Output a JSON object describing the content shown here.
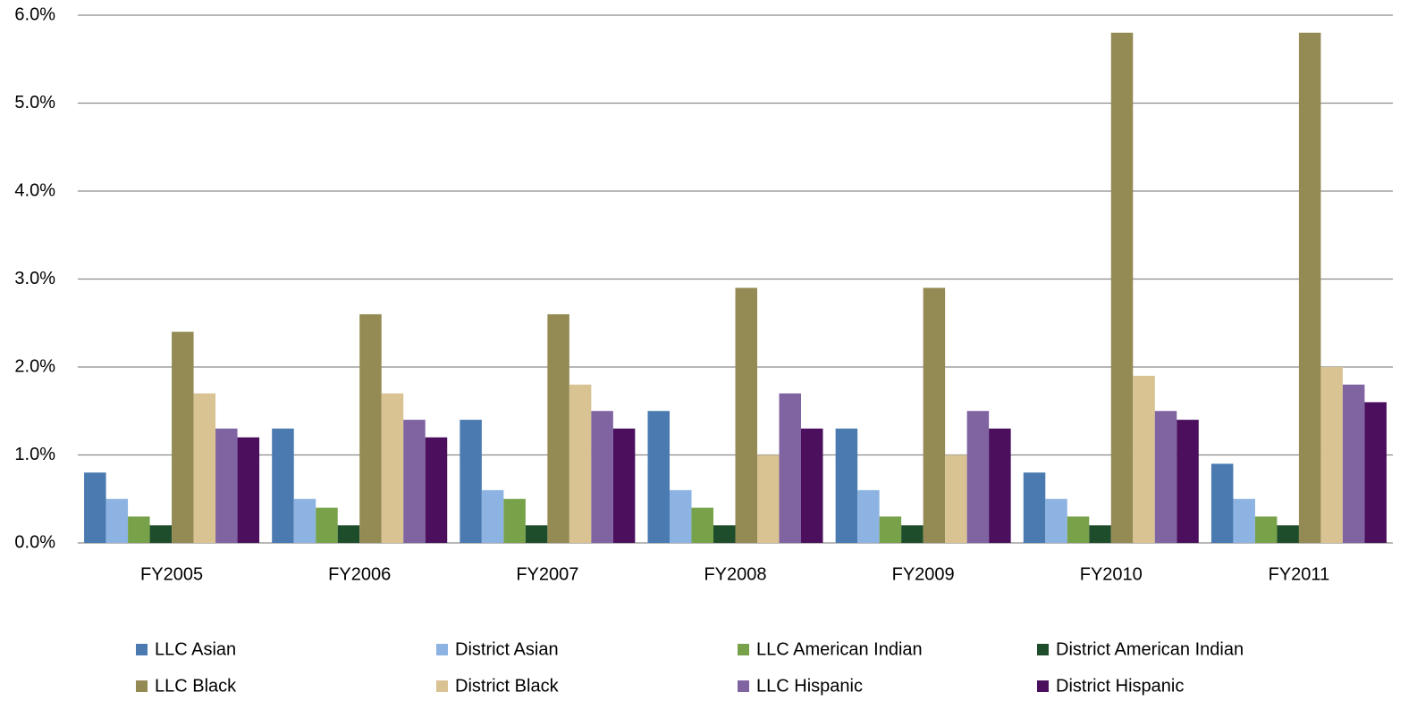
{
  "chart_data": {
    "type": "bar",
    "categories": [
      "FY2005",
      "FY2006",
      "FY2007",
      "FY2008",
      "FY2009",
      "FY2010",
      "FY2011"
    ],
    "series": [
      {
        "name": "LLC Asian",
        "color": "#4a7ab0",
        "values": [
          0.8,
          1.3,
          1.4,
          1.5,
          1.3,
          0.8,
          0.9
        ]
      },
      {
        "name": "District Asian",
        "color": "#8db3e2",
        "values": [
          0.5,
          0.5,
          0.6,
          0.6,
          0.6,
          0.5,
          0.5
        ]
      },
      {
        "name": "LLC American Indian",
        "color": "#77a24a",
        "values": [
          0.3,
          0.4,
          0.5,
          0.4,
          0.3,
          0.3,
          0.3
        ]
      },
      {
        "name": "District American Indian",
        "color": "#1e4d2b",
        "values": [
          0.2,
          0.2,
          0.2,
          0.2,
          0.2,
          0.2,
          0.2
        ]
      },
      {
        "name": "LLC Black",
        "color": "#948a54",
        "values": [
          2.4,
          2.6,
          2.6,
          2.9,
          2.9,
          5.8,
          5.8
        ]
      },
      {
        "name": "District Black",
        "color": "#d9c393",
        "values": [
          1.7,
          1.7,
          1.8,
          1.0,
          1.0,
          1.9,
          2.0
        ]
      },
      {
        "name": "LLC Hispanic",
        "color": "#8064a2",
        "values": [
          1.3,
          1.4,
          1.5,
          1.7,
          1.5,
          1.5,
          1.8
        ]
      },
      {
        "name": "District Hispanic",
        "color": "#4b0f5e",
        "values": [
          1.2,
          1.2,
          1.3,
          1.3,
          1.3,
          1.4,
          1.6
        ]
      }
    ],
    "ylim": [
      0,
      6
    ],
    "yticks": [
      {
        "value": 0,
        "label": "0.0%"
      },
      {
        "value": 1,
        "label": "1.0%"
      },
      {
        "value": 2,
        "label": "2.0%"
      },
      {
        "value": 3,
        "label": "3.0%"
      },
      {
        "value": 4,
        "label": "4.0%"
      },
      {
        "value": 5,
        "label": "5.0%"
      },
      {
        "value": 6,
        "label": "6.0%"
      }
    ],
    "grid": true,
    "legend": "bottom"
  }
}
